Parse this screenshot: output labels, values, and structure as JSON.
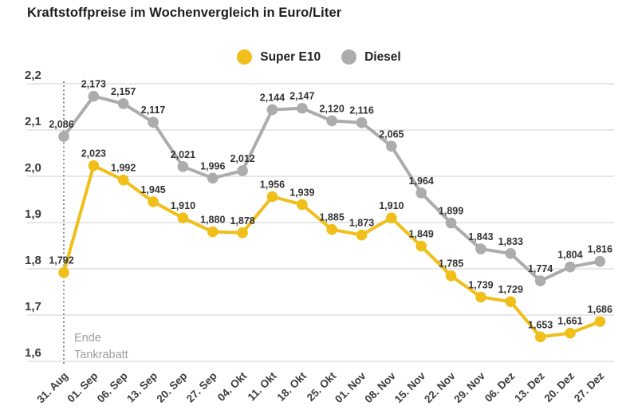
{
  "chart_data": {
    "type": "line",
    "title": "Kraftstoffpreise im Wochenvergleich in Euro/Liter",
    "categories": [
      "31. Aug",
      "01. Sep",
      "06. Sep",
      "13. Sep",
      "20. Sep",
      "27. Sep",
      "04. Okt",
      "11. Okt",
      "18. Okt",
      "25. Okt",
      "01. Nov",
      "08. Nov",
      "15. Nov",
      "22. Nov",
      "29. Nov",
      "06. Dez",
      "13. Dez",
      "20. Dez",
      "27. Dez"
    ],
    "series": [
      {
        "name": "Super E10",
        "color": "#F0BF1A",
        "values": [
          1.792,
          2.023,
          1.992,
          1.945,
          1.91,
          1.88,
          1.878,
          1.956,
          1.939,
          1.885,
          1.873,
          1.91,
          1.849,
          1.785,
          1.739,
          1.729,
          1.653,
          1.661,
          1.686
        ],
        "labels": [
          "1,792",
          "2,023",
          "1,992",
          "1,945",
          "1,910",
          "1,880",
          "1,878",
          "1,956",
          "1,939",
          "1,885",
          "1,873",
          "1,910",
          "1,849",
          "1,785",
          "1,739",
          "1,729",
          "1,653",
          "1,661",
          "1,686"
        ]
      },
      {
        "name": "Diesel",
        "color": "#ACACAC",
        "values": [
          2.086,
          2.173,
          2.157,
          2.117,
          2.021,
          1.996,
          2.012,
          2.144,
          2.147,
          2.12,
          2.116,
          2.065,
          1.964,
          1.899,
          1.843,
          1.833,
          1.774,
          1.804,
          1.816
        ],
        "labels": [
          "2,086",
          "2,173",
          "2,157",
          "2,117",
          "2,021",
          "1,996",
          "2,012",
          "2,144",
          "2,147",
          "2,120",
          "2,116",
          "2,065",
          "1,964",
          "1,899",
          "1,843",
          "1,833",
          "1,774",
          "1,804",
          "1,816"
        ]
      }
    ],
    "xlabel": "",
    "ylabel": "",
    "ylim": [
      1.6,
      2.2
    ],
    "yticks": {
      "values": [
        2.2,
        2.1,
        2.0,
        1.9,
        1.8,
        1.7,
        1.6
      ],
      "labels": [
        "2,2",
        "2,1",
        "2,0",
        "1,9",
        "1,8",
        "1,7",
        "1,6"
      ]
    },
    "grid": true,
    "legend_position": "top",
    "annotation": {
      "text_lines": [
        "Ende",
        "Tankrabatt"
      ],
      "at_category": "31. Aug",
      "marker": "dotted-vertical-line"
    }
  }
}
